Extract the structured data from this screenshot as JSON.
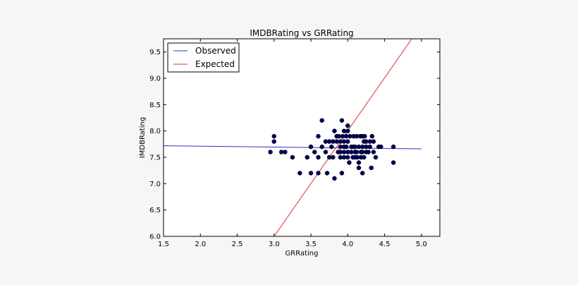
{
  "chart_data": {
    "type": "scatter",
    "title": "IMDBRating vs GRRating",
    "xlabel": "GRRating",
    "ylabel": "IMDBRating",
    "xlim": [
      1.5,
      5.25
    ],
    "ylim": [
      6.0,
      9.75
    ],
    "xticks": [
      "1.5",
      "2.0",
      "2.5",
      "3.0",
      "3.5",
      "4.0",
      "4.5",
      "5.0"
    ],
    "yticks": [
      "6.0",
      "6.5",
      "7.0",
      "7.5",
      "8.0",
      "8.5",
      "9.0",
      "9.5"
    ],
    "grid": false,
    "legend_position": "top-left",
    "point_color": "#00005a",
    "points": [
      [
        2.95,
        7.6
      ],
      [
        3.0,
        7.9
      ],
      [
        3.0,
        7.8
      ],
      [
        3.1,
        7.6
      ],
      [
        3.15,
        7.6
      ],
      [
        3.25,
        7.5
      ],
      [
        3.35,
        7.2
      ],
      [
        3.45,
        7.5
      ],
      [
        3.5,
        7.7
      ],
      [
        3.5,
        7.2
      ],
      [
        3.55,
        7.6
      ],
      [
        3.6,
        7.9
      ],
      [
        3.6,
        7.5
      ],
      [
        3.6,
        7.2
      ],
      [
        3.65,
        8.2
      ],
      [
        3.65,
        7.7
      ],
      [
        3.7,
        7.8
      ],
      [
        3.7,
        7.6
      ],
      [
        3.72,
        7.2
      ],
      [
        3.75,
        7.8
      ],
      [
        3.75,
        7.5
      ],
      [
        3.78,
        7.7
      ],
      [
        3.8,
        7.8
      ],
      [
        3.8,
        7.5
      ],
      [
        3.82,
        8.0
      ],
      [
        3.82,
        7.1
      ],
      [
        3.85,
        7.9
      ],
      [
        3.85,
        7.8
      ],
      [
        3.87,
        7.6
      ],
      [
        3.88,
        7.9
      ],
      [
        3.9,
        7.8
      ],
      [
        3.9,
        7.7
      ],
      [
        3.9,
        7.6
      ],
      [
        3.9,
        7.5
      ],
      [
        3.92,
        8.2
      ],
      [
        3.92,
        7.2
      ],
      [
        3.93,
        7.9
      ],
      [
        3.95,
        8.0
      ],
      [
        3.95,
        7.8
      ],
      [
        3.95,
        7.7
      ],
      [
        3.95,
        7.6
      ],
      [
        3.95,
        7.5
      ],
      [
        3.98,
        7.9
      ],
      [
        3.98,
        7.7
      ],
      [
        4.0,
        8.1
      ],
      [
        4.0,
        8.0
      ],
      [
        4.0,
        7.8
      ],
      [
        4.0,
        7.6
      ],
      [
        4.0,
        7.5
      ],
      [
        4.02,
        7.4
      ],
      [
        4.03,
        7.9
      ],
      [
        4.05,
        7.7
      ],
      [
        4.05,
        7.6
      ],
      [
        4.07,
        7.5
      ],
      [
        4.08,
        7.9
      ],
      [
        4.08,
        7.7
      ],
      [
        4.1,
        7.7
      ],
      [
        4.1,
        7.6
      ],
      [
        4.1,
        7.5
      ],
      [
        4.12,
        7.9
      ],
      [
        4.12,
        7.6
      ],
      [
        4.13,
        7.5
      ],
      [
        4.15,
        7.7
      ],
      [
        4.15,
        7.4
      ],
      [
        4.15,
        7.3
      ],
      [
        4.17,
        7.9
      ],
      [
        4.18,
        7.6
      ],
      [
        4.18,
        7.5
      ],
      [
        4.2,
        7.9
      ],
      [
        4.2,
        7.7
      ],
      [
        4.2,
        7.6
      ],
      [
        4.2,
        7.2
      ],
      [
        4.22,
        7.8
      ],
      [
        4.22,
        7.5
      ],
      [
        4.23,
        7.9
      ],
      [
        4.25,
        7.8
      ],
      [
        4.25,
        7.7
      ],
      [
        4.25,
        7.6
      ],
      [
        4.28,
        7.6
      ],
      [
        4.3,
        7.8
      ],
      [
        4.3,
        7.7
      ],
      [
        4.32,
        7.3
      ],
      [
        4.33,
        7.9
      ],
      [
        4.35,
        7.8
      ],
      [
        4.35,
        7.6
      ],
      [
        4.38,
        7.5
      ],
      [
        4.42,
        7.7
      ],
      [
        4.45,
        7.7
      ],
      [
        4.62,
        7.7
      ],
      [
        4.62,
        7.4
      ]
    ],
    "series": [
      {
        "name": "Observed",
        "color": "#2f2fc8",
        "x": [
          1.5,
          5.0
        ],
        "y": [
          7.72,
          7.66
        ]
      },
      {
        "name": "Expected",
        "color": "#e0302a",
        "x": [
          3.0,
          4.87
        ],
        "y": [
          6.0,
          9.75
        ]
      }
    ]
  }
}
